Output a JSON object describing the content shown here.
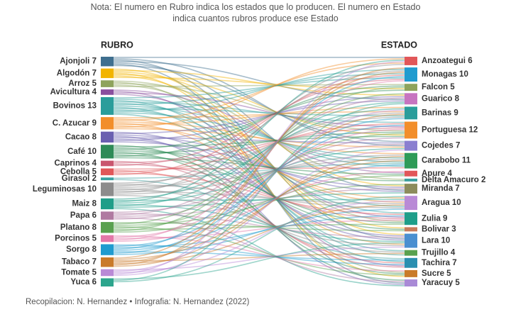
{
  "chart_data": {
    "type": "sankey",
    "title": "Nota: El numero en Rubro indica los estados que lo producen. El numero en Estado indica cuantos rubros produce ese Estado",
    "caption": "Recopilacion: N. Hernandez • Infografia: N. Hernandez (2022)",
    "sources": {
      "header": "RUBRO",
      "nodes": [
        {
          "name": "Ajonjoli",
          "value": 7,
          "color": "#3f6f8f"
        },
        {
          "name": "Algodón",
          "value": 7,
          "color": "#f2b400"
        },
        {
          "name": "Arroz",
          "value": 5,
          "color": "#8ea35c"
        },
        {
          "name": "Avicultura",
          "value": 4,
          "color": "#8a4f9e"
        },
        {
          "name": "Bovinos",
          "value": 13,
          "color": "#2a9d9b"
        },
        {
          "name": "C. Azucar",
          "value": 9,
          "color": "#f28e2b"
        },
        {
          "name": "Cacao",
          "value": 8,
          "color": "#6a5fb0"
        },
        {
          "name": "Café",
          "value": 10,
          "color": "#2e8b57"
        },
        {
          "name": "Caprinos",
          "value": 4,
          "color": "#c9566e"
        },
        {
          "name": "Cebolla",
          "value": 5,
          "color": "#e15759"
        },
        {
          "name": "Girasol",
          "value": 2,
          "color": "#3aa0a0"
        },
        {
          "name": "Leguminosas",
          "value": 10,
          "color": "#8c8c8c"
        },
        {
          "name": "Maiz",
          "value": 8,
          "color": "#1f9e89"
        },
        {
          "name": "Papa",
          "value": 6,
          "color": "#b07aa1"
        },
        {
          "name": "Platano",
          "value": 8,
          "color": "#59a14f"
        },
        {
          "name": "Porcinos",
          "value": 5,
          "color": "#e377a8"
        },
        {
          "name": "Sorgo",
          "value": 8,
          "color": "#1f9bcf"
        },
        {
          "name": "Tabaco",
          "value": 7,
          "color": "#c97b2a"
        },
        {
          "name": "Tomate",
          "value": 5,
          "color": "#b98ad6"
        },
        {
          "name": "Yuca",
          "value": 6,
          "color": "#2ca58d"
        }
      ]
    },
    "targets": {
      "header": "ESTADO",
      "nodes": [
        {
          "name": "Anzoategui",
          "value": 6,
          "color": "#e15759"
        },
        {
          "name": "Monagas",
          "value": 10,
          "color": "#1f9bcf"
        },
        {
          "name": "Falcon",
          "value": 5,
          "color": "#8ea35c"
        },
        {
          "name": "Guarico",
          "value": 8,
          "color": "#c774c0"
        },
        {
          "name": "Barinas",
          "value": 9,
          "color": "#2a9d9b"
        },
        {
          "name": "Portuguesa",
          "value": 12,
          "color": "#f28e2b"
        },
        {
          "name": "Cojedes",
          "value": 7,
          "color": "#8a7fd0"
        },
        {
          "name": "Carabobo",
          "value": 11,
          "color": "#2e9b57"
        },
        {
          "name": "Apure",
          "value": 4,
          "color": "#e15759"
        },
        {
          "name": "Delta Amacuro",
          "value": 2,
          "color": "#3aa0a0"
        },
        {
          "name": "Miranda",
          "value": 7,
          "color": "#8c8c5c"
        },
        {
          "name": "Aragua",
          "value": 10,
          "color": "#b98ad6"
        },
        {
          "name": "Zulia",
          "value": 9,
          "color": "#1f9e89"
        },
        {
          "name": "Bolivar",
          "value": 3,
          "color": "#c97b5a"
        },
        {
          "name": "Lara",
          "value": 10,
          "color": "#4a8fd0"
        },
        {
          "name": "Trujillo",
          "value": 4,
          "color": "#59a14f"
        },
        {
          "name": "Tachira",
          "value": 7,
          "color": "#2a8fb0"
        },
        {
          "name": "Sucre",
          "value": 5,
          "color": "#c97b2a"
        },
        {
          "name": "Yaracuy",
          "value": 5,
          "color": "#a98ad6"
        }
      ]
    }
  }
}
